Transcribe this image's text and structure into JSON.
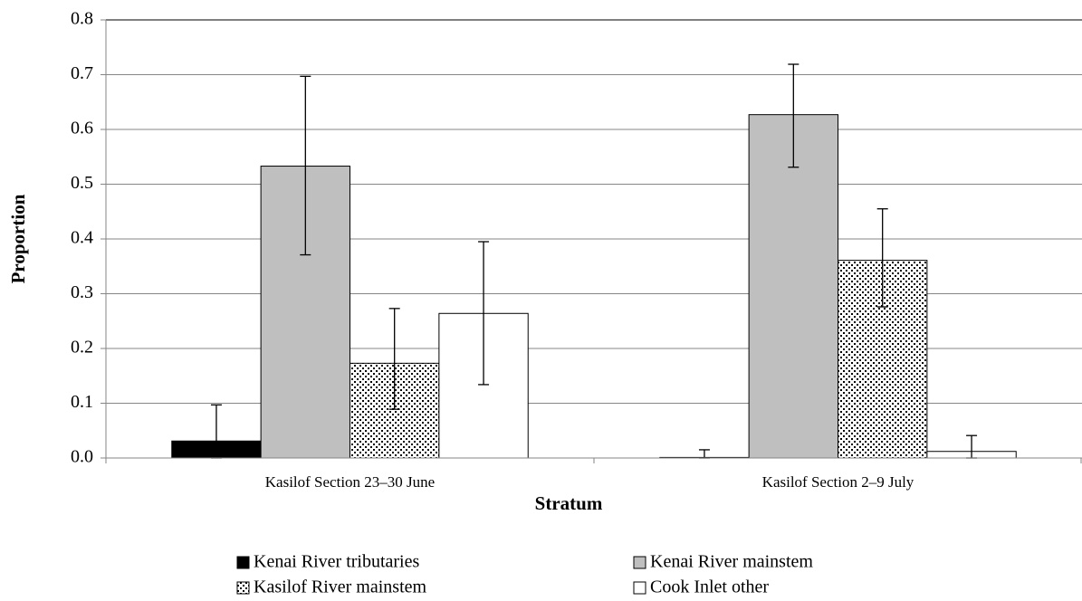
{
  "chart_data": {
    "type": "bar",
    "x_label": "Stratum",
    "y_label": "Proportion",
    "categories": [
      "Kasilof Section 23–30 June",
      "Kasilof Section 2–9 July"
    ],
    "series": [
      {
        "name": "Kenai River tributaries",
        "color": "#000000",
        "values": [
          0.031,
          0.001
        ],
        "lower": [
          0.0,
          0.0
        ],
        "upper": [
          0.097,
          0.015
        ]
      },
      {
        "name": "Kenai River mainstem",
        "color": "#bfbfbf",
        "values": [
          0.533,
          0.627
        ],
        "lower": [
          0.371,
          0.531
        ],
        "upper": [
          0.697,
          0.719
        ]
      },
      {
        "name": "Kasilof River mainstem",
        "color": "#ffffff",
        "pattern": "dots",
        "values": [
          0.173,
          0.361
        ],
        "lower": [
          0.089,
          0.276
        ],
        "upper": [
          0.273,
          0.455
        ]
      },
      {
        "name": "Cook Inlet other",
        "color": "#ffffff",
        "values": [
          0.264,
          0.012
        ],
        "lower": [
          0.134,
          0.0
        ],
        "upper": [
          0.395,
          0.041
        ]
      }
    ],
    "ylim": [
      0,
      0.8
    ],
    "yticks": [
      {
        "value": 0,
        "label": "0.0"
      },
      0.1,
      0.2,
      0.3,
      0.4,
      0.5,
      0.6,
      0.7,
      0.8
    ],
    "grid": true,
    "legend": "bottom"
  }
}
